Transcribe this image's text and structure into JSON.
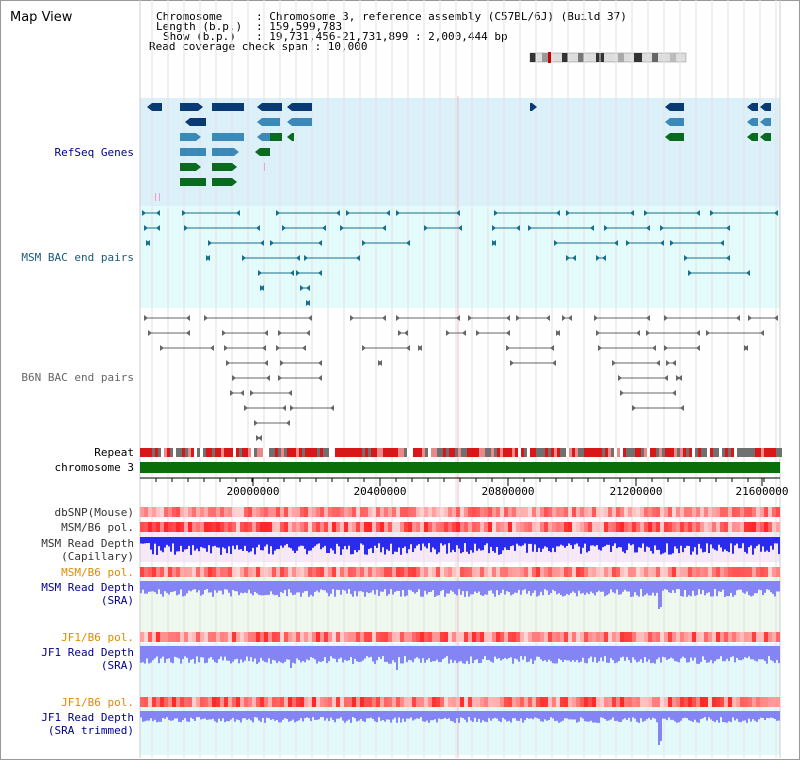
{
  "title": "Map View",
  "header": {
    "chromosome_key": "Chromosome",
    "chromosome_val": ": Chromosome 3, reference assembly (C57BL/6J) (Build 37)",
    "length_key": "Length (b.p.)",
    "length_val": ": 159,599,783",
    "show_key": "Show (b.p.)",
    "show_val": ": 19,731,456-21,731,899 : 2,000,444 bp",
    "coverage": "Read coverage check span : 10,000"
  },
  "tracks": {
    "refseq": "RefSeq Genes",
    "msm_bac": "MSM BAC end pairs",
    "b6n_bac": "B6N BAC end pairs",
    "repeat": "Repeat",
    "chromosome": "chromosome 3",
    "dbsnp": "dbSNP(Mouse)",
    "msm_b6_pol_1": "MSM/B6 pol.",
    "msm_read_depth_cap_1": "MSM Read Depth",
    "msm_read_depth_cap_2": "(Capillary)",
    "msm_b6_pol_2": "MSM/B6 pol.",
    "msm_read_depth_sra_1": "MSM Read Depth",
    "msm_read_depth_sra_2": "(SRA)",
    "jf1_b6_pol_1": "JF1/B6 pol.",
    "jf1_read_depth_sra_1": "JF1 Read Depth",
    "jf1_read_depth_sra_2": "(SRA)",
    "jf1_b6_pol_2": "JF1/B6 pol.",
    "jf1_read_depth_trim_1": "JF1 Read Depth",
    "jf1_read_depth_trim_2": "(SRA trimmed)"
  },
  "axis": {
    "ticks": [
      "20000000",
      "20400000",
      "20800000",
      "21200000",
      "21600000"
    ]
  },
  "colors": {
    "refseq_dark": "#0a3a73",
    "refseq_mid": "#3a89b8",
    "refseq_green": "#0a6a1e",
    "msm_bac": "#1a6e8e",
    "b6n_bac": "#666666",
    "chromosome_bar": "#0a6e0a",
    "label_blue": "#00008b",
    "label_teal": "#1a5a7a",
    "label_orange": "#e08a00",
    "bg_refseq": "#dcf0fa",
    "bg_msm": "#e4fbfb",
    "depth_blue": "#2b2bf0",
    "depth_lightblue": "#8484f5"
  }
}
